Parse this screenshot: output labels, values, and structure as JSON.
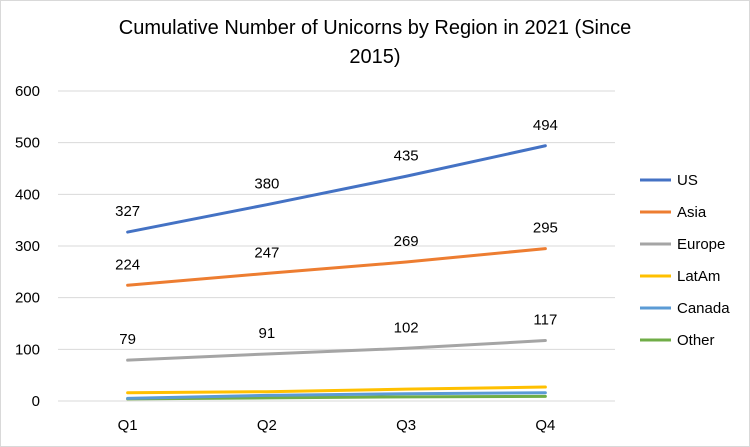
{
  "chart_data": {
    "type": "line",
    "title_lines": [
      "Cumulative Number of Unicorns by Region in 2021 (Since",
      "2015)"
    ],
    "categories": [
      "Q1",
      "Q2",
      "Q3",
      "Q4"
    ],
    "ylim": [
      0,
      600
    ],
    "yticks": [
      0,
      100,
      200,
      300,
      400,
      500,
      600
    ],
    "ytick_labels": [
      "0",
      "100",
      "200",
      "300",
      "400",
      "500",
      "600"
    ],
    "grid": true,
    "legend_position": "right",
    "series": [
      {
        "name": "US",
        "color": "#4472C4",
        "values": [
          327,
          380,
          435,
          494
        ],
        "labels": [
          "327",
          "380",
          "435",
          "494"
        ]
      },
      {
        "name": "Asia",
        "color": "#ED7D31",
        "values": [
          224,
          247,
          269,
          295
        ],
        "labels": [
          "224",
          "247",
          "269",
          "295"
        ]
      },
      {
        "name": "Europe",
        "color": "#A5A5A5",
        "values": [
          79,
          91,
          102,
          117
        ],
        "labels": [
          "79",
          "91",
          "102",
          "117"
        ]
      },
      {
        "name": "LatAm",
        "color": "#FFC000",
        "values": [
          16,
          18,
          23,
          27
        ],
        "labels": []
      },
      {
        "name": "Canada",
        "color": "#5B9BD5",
        "values": [
          5,
          11,
          14,
          16
        ],
        "labels": []
      },
      {
        "name": "Other",
        "color": "#70AD47",
        "values": [
          4,
          6,
          8,
          9
        ],
        "labels": []
      }
    ]
  }
}
